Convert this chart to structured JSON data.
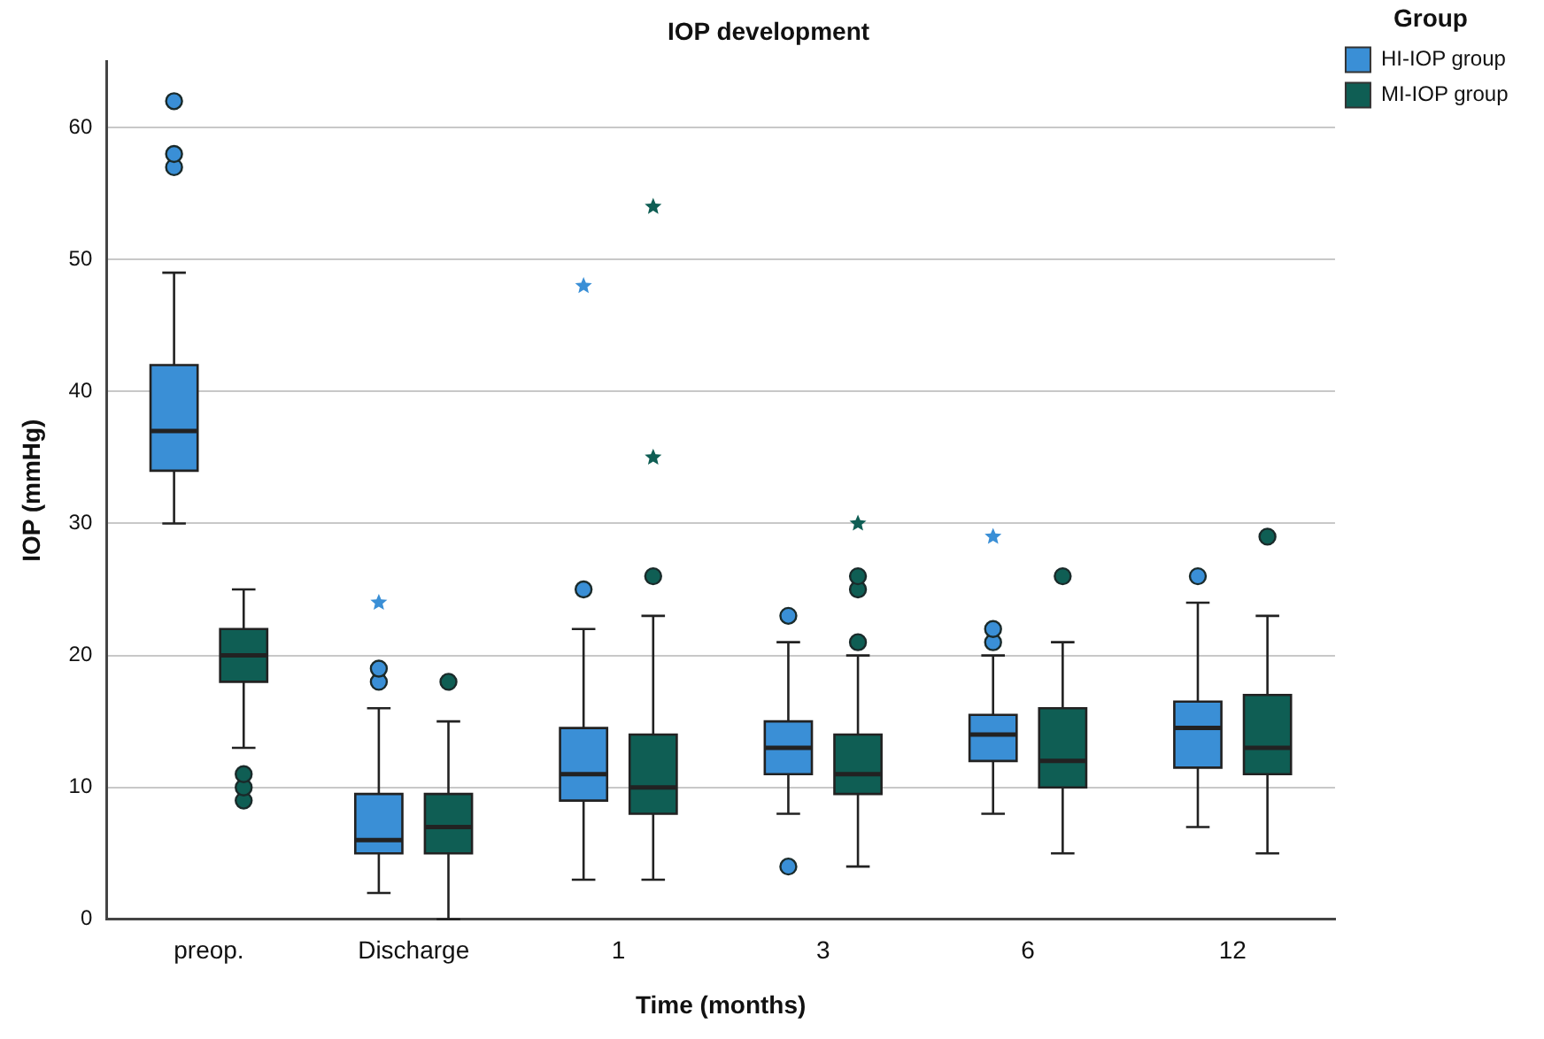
{
  "chart_data": {
    "type": "box",
    "title": "IOP development",
    "xlabel": "Time (months)",
    "ylabel": "IOP (mmHg)",
    "legend_title": "Group",
    "legend": "top right",
    "grid": "y",
    "categories": [
      "preop.",
      "Discharge",
      "1",
      "3",
      "6",
      "12"
    ],
    "ylim": [
      0,
      65
    ],
    "yticks": [
      0,
      10,
      20,
      30,
      40,
      50,
      60
    ],
    "series": [
      {
        "name": "HI-IOP group",
        "color": "#3a8fd6",
        "boxes": [
          {
            "low": 30,
            "q1": 34,
            "median": 37,
            "q3": 42,
            "high": 49,
            "outliers": [
              57,
              58,
              62
            ]
          },
          {
            "low": 2,
            "q1": 5,
            "median": 6,
            "q3": 9.5,
            "high": 16,
            "outliers": [
              18,
              19,
              24
            ]
          },
          {
            "low": 3,
            "q1": 9,
            "median": 11,
            "q3": 14.5,
            "high": 22,
            "outliers": [
              25,
              48
            ]
          },
          {
            "low": 8,
            "q1": 11,
            "median": 13,
            "q3": 15,
            "high": 21,
            "outliers": [
              4,
              23
            ]
          },
          {
            "low": 8,
            "q1": 12,
            "median": 14,
            "q3": 15.5,
            "high": 20,
            "outliers": [
              21,
              22,
              29
            ]
          },
          {
            "low": 7,
            "q1": 11.5,
            "median": 14.5,
            "q3": 16.5,
            "high": 24,
            "outliers": [
              26
            ]
          }
        ]
      },
      {
        "name": "MI-IOP group",
        "color": "#0f5e54",
        "boxes": [
          {
            "low": 13,
            "q1": 18,
            "median": 20,
            "q3": 22,
            "high": 25,
            "outliers": [
              9,
              10,
              11
            ]
          },
          {
            "low": 0,
            "q1": 5,
            "median": 7,
            "q3": 9.5,
            "high": 15,
            "outliers": [
              18
            ]
          },
          {
            "low": 3,
            "q1": 8,
            "median": 10,
            "q3": 14,
            "high": 23,
            "outliers": [
              26,
              35,
              54
            ]
          },
          {
            "low": 4,
            "q1": 9.5,
            "median": 11,
            "q3": 14,
            "high": 20,
            "outliers": [
              21,
              25,
              26,
              30
            ]
          },
          {
            "low": 5,
            "q1": 10,
            "median": 12,
            "q3": 16,
            "high": 21,
            "outliers": [
              26
            ]
          },
          {
            "low": 5,
            "q1": 11,
            "median": 13,
            "q3": 17,
            "high": 23,
            "outliers": [
              29
            ]
          }
        ]
      }
    ]
  }
}
